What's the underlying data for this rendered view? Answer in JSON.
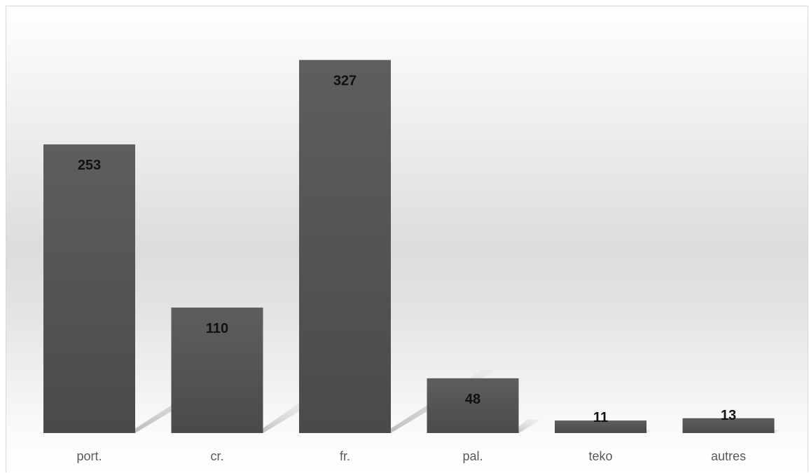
{
  "chart_data": {
    "type": "bar",
    "title": "",
    "xlabel": "",
    "ylabel": "",
    "categories": [
      "port.",
      "cr.",
      "fr.",
      "pal.",
      "teko",
      "autres"
    ],
    "values": [
      253,
      110,
      327,
      48,
      11,
      13
    ],
    "data_labels": [
      "253",
      "110",
      "327",
      "48",
      "11",
      "13"
    ],
    "ylim": [
      0,
      355
    ],
    "grid": false,
    "legend": "none",
    "bar_color": "#555555",
    "shadow_color": "#bfbfbf"
  }
}
